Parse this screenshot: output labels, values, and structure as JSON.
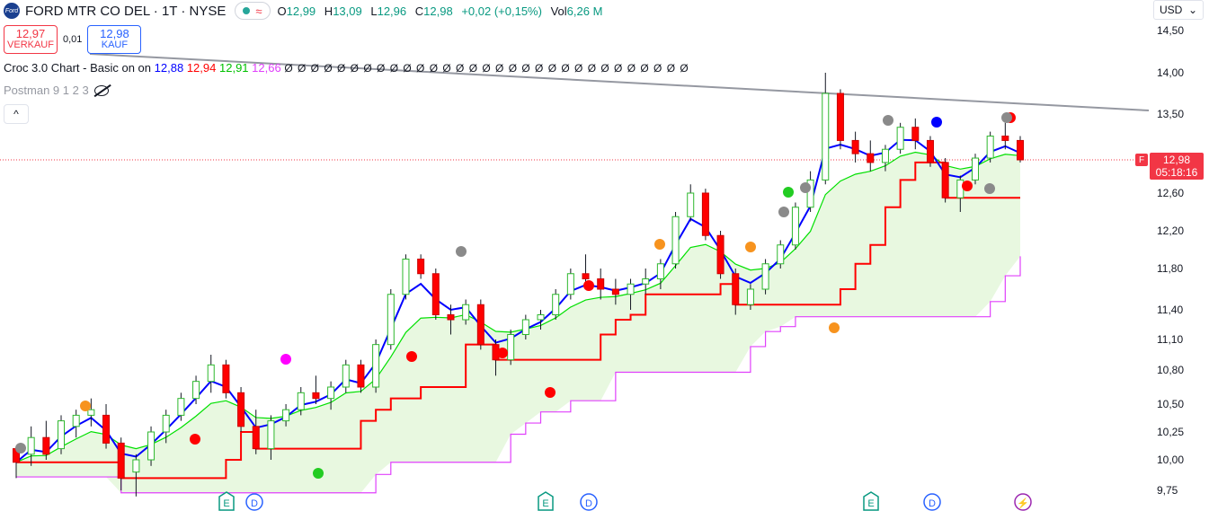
{
  "header": {
    "symbol": "FORD MTR CO DEL · 1T · NYSE",
    "logo_text": "Ford",
    "approx_glyph": "≈",
    "ohlc": {
      "o_label": "O",
      "o": "12,99",
      "h_label": "H",
      "h": "13,09",
      "l_label": "L",
      "l": "12,96",
      "c_label": "C",
      "c": "12,98",
      "change": "+0,02 (+0,15%)",
      "vol_label": "Vol",
      "vol": "6,26 M"
    }
  },
  "trade": {
    "sell_price": "12,97",
    "sell_label": "VERKAUF",
    "spread": "0,01",
    "buy_price": "12,98",
    "buy_label": "KAUF"
  },
  "indicators": {
    "croc_label": "Croc 3.0 Chart - Basic on on",
    "croc_values": [
      "12,88",
      "12,94",
      "12,91",
      "12,66"
    ],
    "croc_zeros": "Ø Ø Ø Ø Ø Ø Ø Ø Ø Ø Ø Ø Ø Ø Ø Ø Ø Ø Ø Ø Ø Ø Ø Ø Ø Ø Ø Ø Ø Ø Ø",
    "postman_label": "Postman 9 1 2 3",
    "collapse_glyph": "^"
  },
  "currency": {
    "label": "USD",
    "chevron": "⌄"
  },
  "last_price": {
    "price": "12,98",
    "countdown": "05:18:16",
    "badge": "F"
  },
  "colors": {
    "up": "#26a69a",
    "down": "#f23645",
    "blue_line": "#0000ff",
    "red_line": "#ff0000",
    "green_line": "#00e000",
    "magenta_line": "#e040fb",
    "cloud": "#e8f8e0",
    "trend": "#9598a1"
  },
  "chart_data": {
    "type": "candlestick",
    "ylim": [
      9.62,
      14.62
    ],
    "y_ticks": [
      "14,50",
      "14,00",
      "13,50",
      "12,98",
      "12,60",
      "12,20",
      "11,80",
      "11,40",
      "11,10",
      "10,80",
      "10,50",
      "10,25",
      "10,00",
      "9,75"
    ],
    "candles_approx": [
      [
        10.1,
        10.02,
        9.85,
        9.98
      ],
      [
        10.05,
        10.3,
        9.95,
        10.2
      ],
      [
        10.2,
        10.35,
        10.0,
        10.05
      ],
      [
        10.1,
        10.4,
        10.05,
        10.35
      ],
      [
        10.3,
        10.45,
        10.2,
        10.4
      ],
      [
        10.4,
        10.55,
        10.3,
        10.45
      ],
      [
        10.4,
        10.5,
        10.1,
        10.15
      ],
      [
        10.15,
        10.2,
        9.75,
        9.85
      ],
      [
        9.9,
        10.05,
        9.7,
        10.0
      ],
      [
        10.0,
        10.3,
        9.95,
        10.25
      ],
      [
        10.25,
        10.45,
        10.15,
        10.4
      ],
      [
        10.4,
        10.6,
        10.35,
        10.55
      ],
      [
        10.55,
        10.75,
        10.5,
        10.7
      ],
      [
        10.7,
        10.95,
        10.6,
        10.85
      ],
      [
        10.85,
        10.9,
        10.55,
        10.6
      ],
      [
        10.6,
        10.65,
        10.25,
        10.3
      ],
      [
        10.3,
        10.45,
        10.05,
        10.1
      ],
      [
        10.1,
        10.4,
        10.0,
        10.35
      ],
      [
        10.35,
        10.5,
        10.3,
        10.45
      ],
      [
        10.45,
        10.65,
        10.4,
        10.6
      ],
      [
        10.6,
        10.75,
        10.5,
        10.55
      ],
      [
        10.55,
        10.7,
        10.45,
        10.65
      ],
      [
        10.65,
        10.9,
        10.6,
        10.85
      ],
      [
        10.85,
        10.9,
        10.6,
        10.65
      ],
      [
        10.65,
        11.1,
        10.6,
        11.05
      ],
      [
        11.05,
        11.6,
        11.0,
        11.55
      ],
      [
        11.55,
        11.95,
        11.5,
        11.9
      ],
      [
        11.9,
        11.95,
        11.7,
        11.75
      ],
      [
        11.75,
        11.8,
        11.3,
        11.35
      ],
      [
        11.35,
        11.45,
        11.15,
        11.3
      ],
      [
        11.3,
        11.5,
        11.25,
        11.45
      ],
      [
        11.45,
        11.5,
        11.0,
        11.05
      ],
      [
        11.05,
        11.1,
        10.75,
        10.9
      ],
      [
        10.9,
        11.2,
        10.85,
        11.15
      ],
      [
        11.15,
        11.35,
        11.1,
        11.3
      ],
      [
        11.3,
        11.4,
        11.2,
        11.35
      ],
      [
        11.35,
        11.6,
        11.3,
        11.55
      ],
      [
        11.55,
        11.8,
        11.5,
        11.75
      ],
      [
        11.75,
        11.95,
        11.65,
        11.7
      ],
      [
        11.7,
        11.8,
        11.5,
        11.6
      ],
      [
        11.6,
        11.7,
        11.45,
        11.55
      ],
      [
        11.55,
        11.7,
        11.4,
        11.65
      ],
      [
        11.65,
        11.8,
        11.55,
        11.7
      ],
      [
        11.7,
        11.9,
        11.6,
        11.85
      ],
      [
        11.85,
        12.4,
        11.8,
        12.35
      ],
      [
        12.35,
        12.7,
        12.3,
        12.6
      ],
      [
        12.6,
        12.65,
        12.1,
        12.15
      ],
      [
        12.15,
        12.2,
        11.7,
        11.75
      ],
      [
        11.75,
        11.8,
        11.35,
        11.45
      ],
      [
        11.45,
        11.65,
        11.4,
        11.6
      ],
      [
        11.6,
        11.9,
        11.55,
        11.85
      ],
      [
        11.85,
        12.1,
        11.8,
        12.05
      ],
      [
        12.05,
        12.5,
        12.0,
        12.45
      ],
      [
        12.45,
        12.85,
        12.4,
        12.75
      ],
      [
        12.75,
        14.0,
        12.7,
        13.75
      ],
      [
        13.75,
        13.8,
        13.1,
        13.2
      ],
      [
        13.2,
        13.3,
        12.95,
        13.05
      ],
      [
        13.05,
        13.2,
        12.85,
        12.95
      ],
      [
        12.95,
        13.15,
        12.85,
        13.1
      ],
      [
        13.1,
        13.4,
        13.05,
        13.35
      ],
      [
        13.35,
        13.45,
        13.1,
        13.2
      ],
      [
        13.2,
        13.25,
        12.9,
        12.95
      ],
      [
        12.95,
        13.0,
        12.5,
        12.55
      ],
      [
        12.55,
        12.8,
        12.4,
        12.75
      ],
      [
        12.75,
        13.05,
        12.7,
        13.0
      ],
      [
        13.0,
        13.3,
        12.95,
        13.25
      ],
      [
        13.25,
        13.4,
        13.1,
        13.2
      ],
      [
        13.2,
        13.25,
        12.95,
        12.98
      ]
    ]
  },
  "axis_markers": {
    "earnings_label": "E",
    "dividend_label": "D",
    "split_label": "⚡"
  }
}
